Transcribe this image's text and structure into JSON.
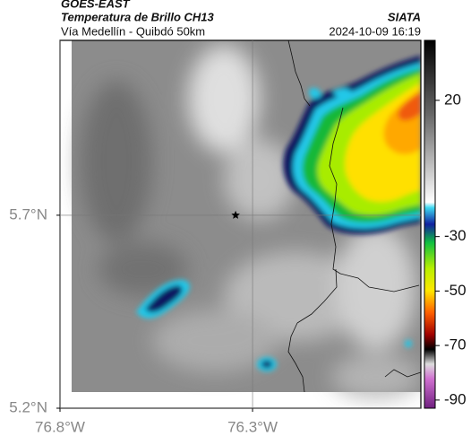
{
  "header": {
    "source": "GOES-EAST",
    "title": "Temperatura de Brillo CH13",
    "subtitle": "Vía Medellín - Quibdó 50km",
    "brand": "SIATA",
    "timestamp": "2024-10-09 16:19"
  },
  "map": {
    "xlim": [
      -76.8,
      -75.863
    ],
    "ylim": [
      5.2,
      6.153
    ],
    "xticks": [
      {
        "value": -76.8,
        "label": "76.8°W"
      },
      {
        "value": -76.3,
        "label": "76.3°W"
      }
    ],
    "yticks": [
      {
        "value": 5.2,
        "label": "5.2°N"
      },
      {
        "value": 5.7,
        "label": "5.7°N"
      }
    ],
    "grid": true,
    "marker": {
      "lon": -76.344,
      "lat": 5.7
    }
  },
  "colorbar": {
    "range": [
      42,
      -93
    ],
    "ticks": [
      20,
      -30,
      -50,
      -70,
      -90
    ]
  }
}
